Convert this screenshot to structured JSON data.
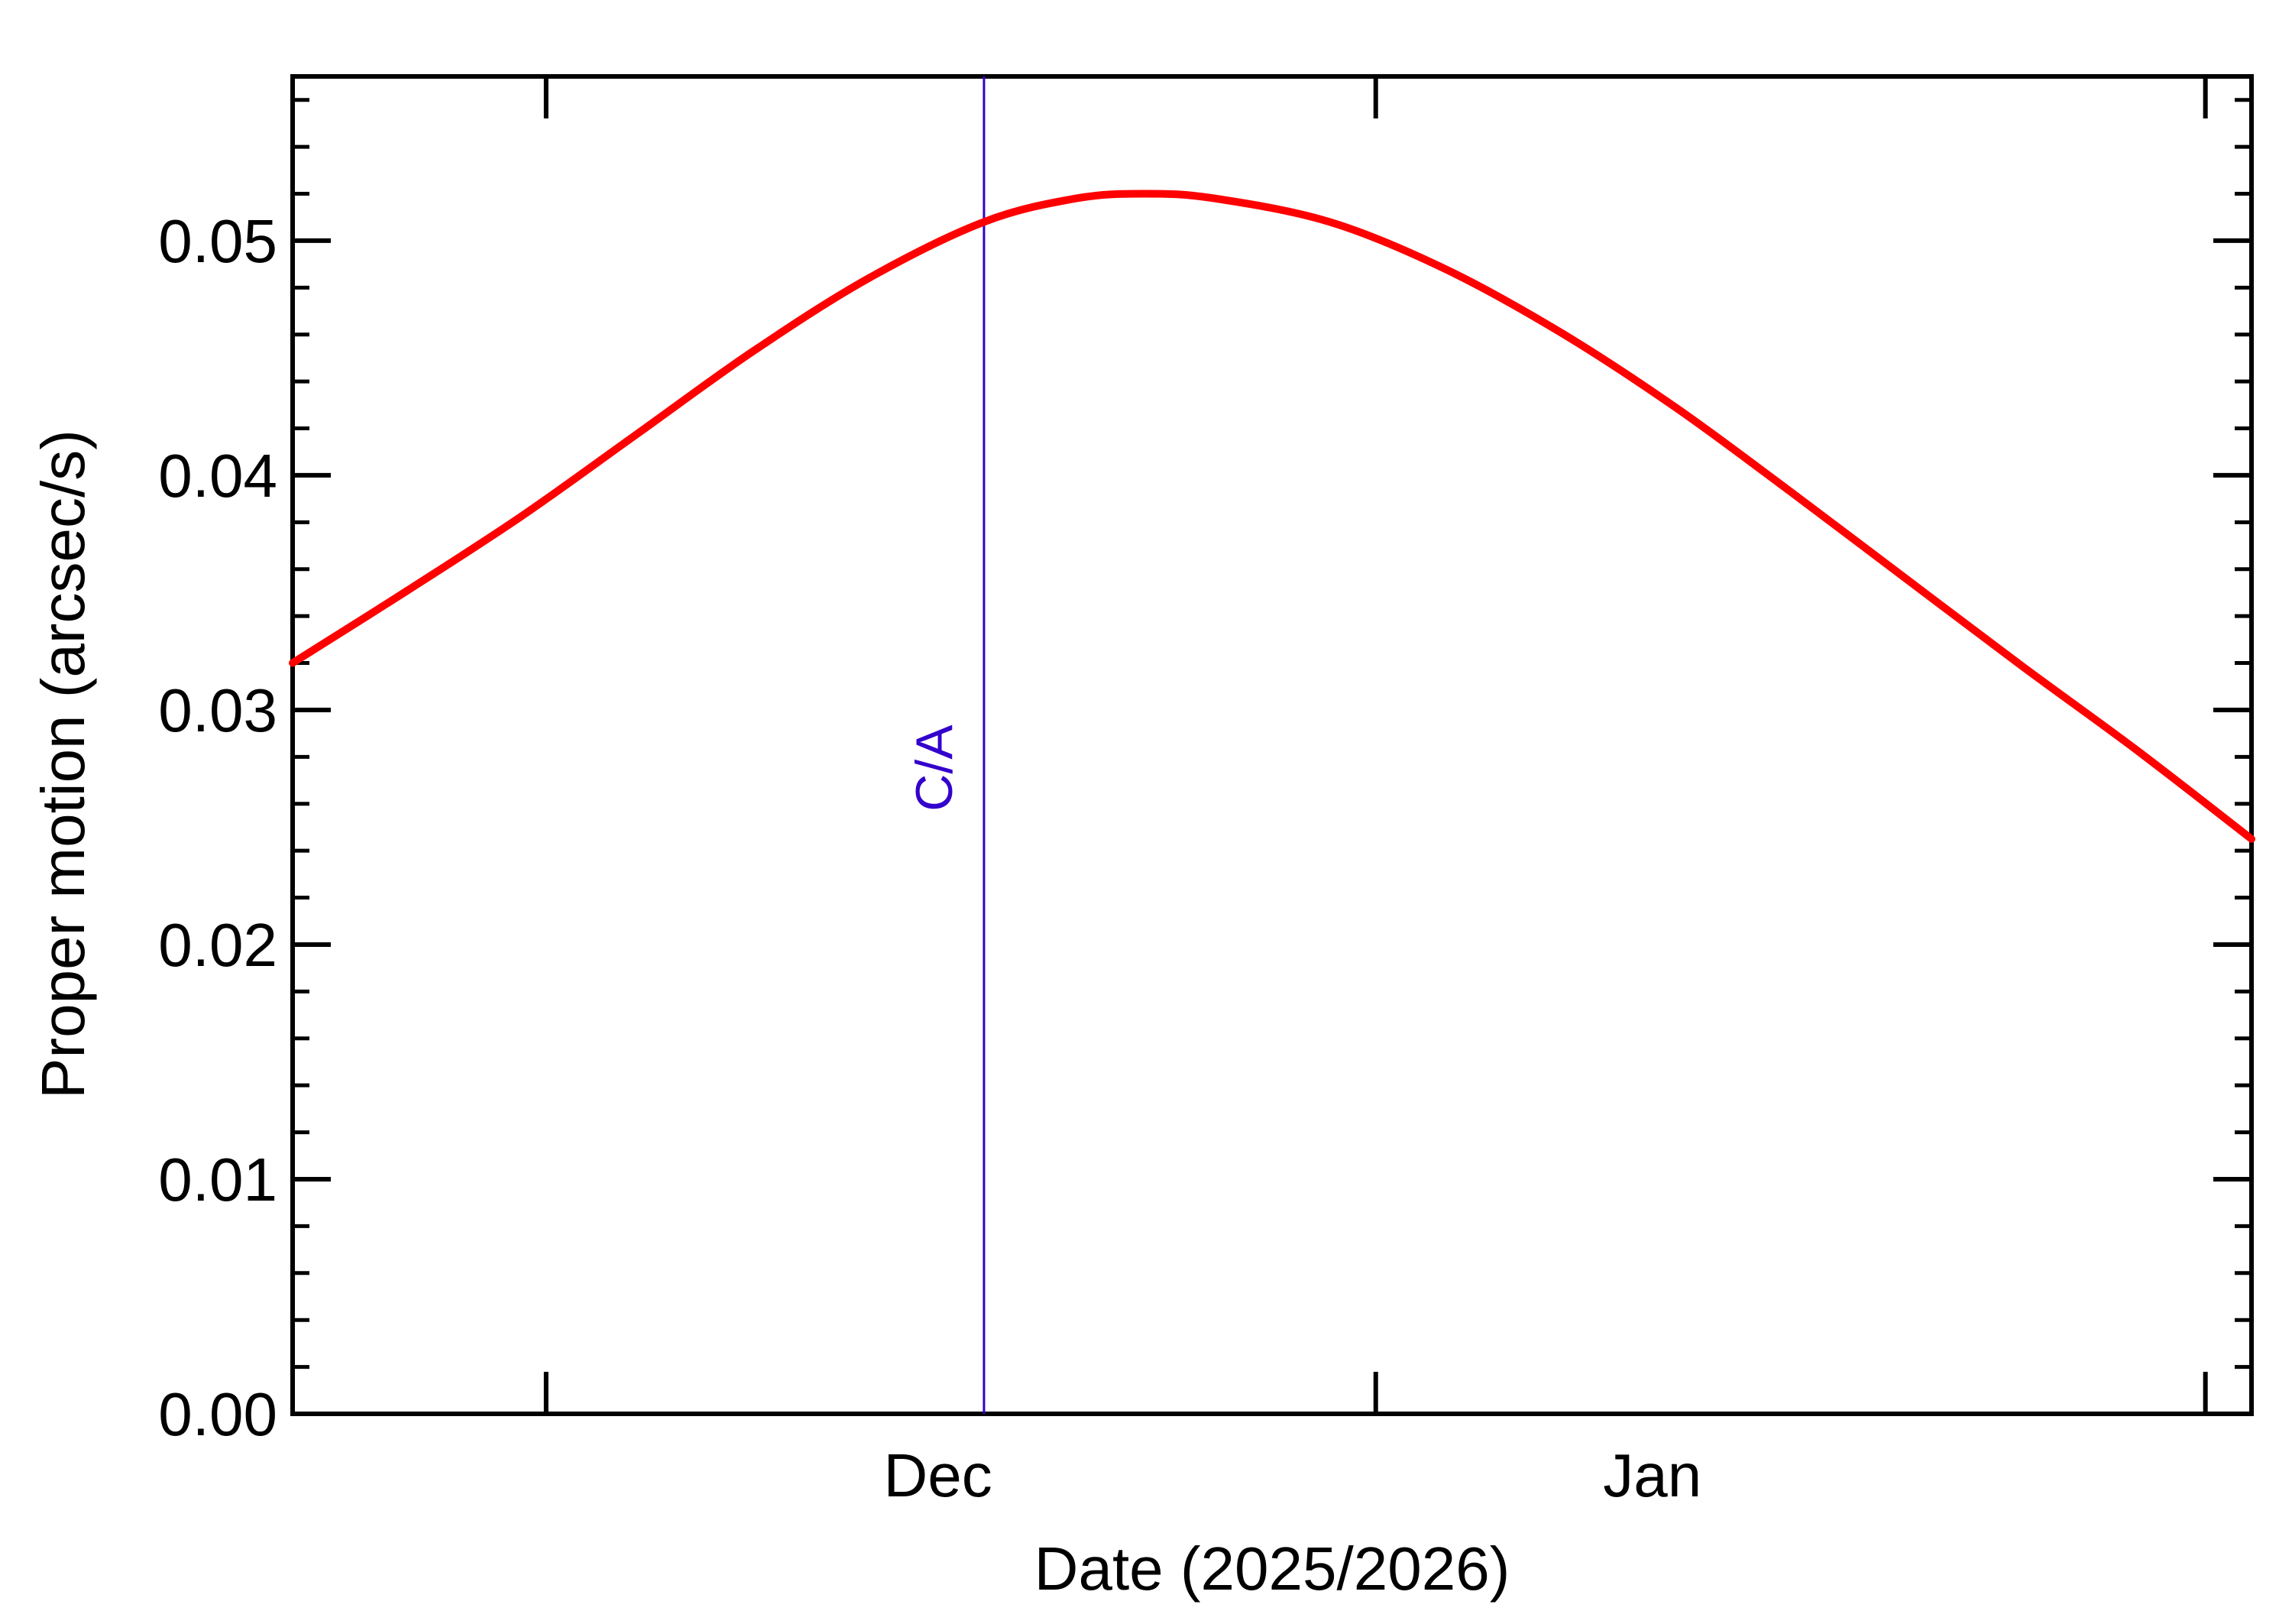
{
  "chart_data": {
    "type": "line",
    "title": "",
    "xlabel": "Date (2025/2026)",
    "ylabel": "Proper motion (arcsec/s)",
    "x_range": [
      "2025-11-03",
      "2026-01-27"
    ],
    "ylim": [
      0.0,
      0.057
    ],
    "y_ticks": [
      0.0,
      0.01,
      0.02,
      0.03,
      0.04,
      0.05
    ],
    "y_tick_labels": [
      "0.00",
      "0.01",
      "0.02",
      "0.03",
      "0.04",
      "0.05"
    ],
    "x_month_ticks": [
      "2025-11-14",
      "2025-12-20",
      "2026-01-25"
    ],
    "x_month_labels": [
      {
        "date": "2025-12-01",
        "label": "Dec"
      },
      {
        "date": "2026-01-01",
        "label": "Jan"
      }
    ],
    "grid": false,
    "series": [
      {
        "color": "#ff0000",
        "x": [
          "2025-11-03",
          "2025-11-08",
          "2025-11-13",
          "2025-11-18",
          "2025-11-23",
          "2025-11-28",
          "2025-12-03",
          "2025-12-07",
          "2025-12-10",
          "2025-12-13",
          "2025-12-18",
          "2025-12-23",
          "2025-12-28",
          "2026-01-02",
          "2026-01-07",
          "2026-01-12",
          "2026-01-17",
          "2026-01-22",
          "2026-01-27"
        ],
        "y": [
          0.032,
          0.0351,
          0.0383,
          0.0418,
          0.0453,
          0.0484,
          0.0508,
          0.0518,
          0.052,
          0.0518,
          0.0508,
          0.0488,
          0.0461,
          0.0429,
          0.0393,
          0.0356,
          0.0319,
          0.0283,
          0.0245
        ]
      }
    ],
    "annotations": [
      {
        "type": "vline",
        "date": "2025-12-03",
        "label": "C/A",
        "color": "#3300cc"
      }
    ]
  }
}
